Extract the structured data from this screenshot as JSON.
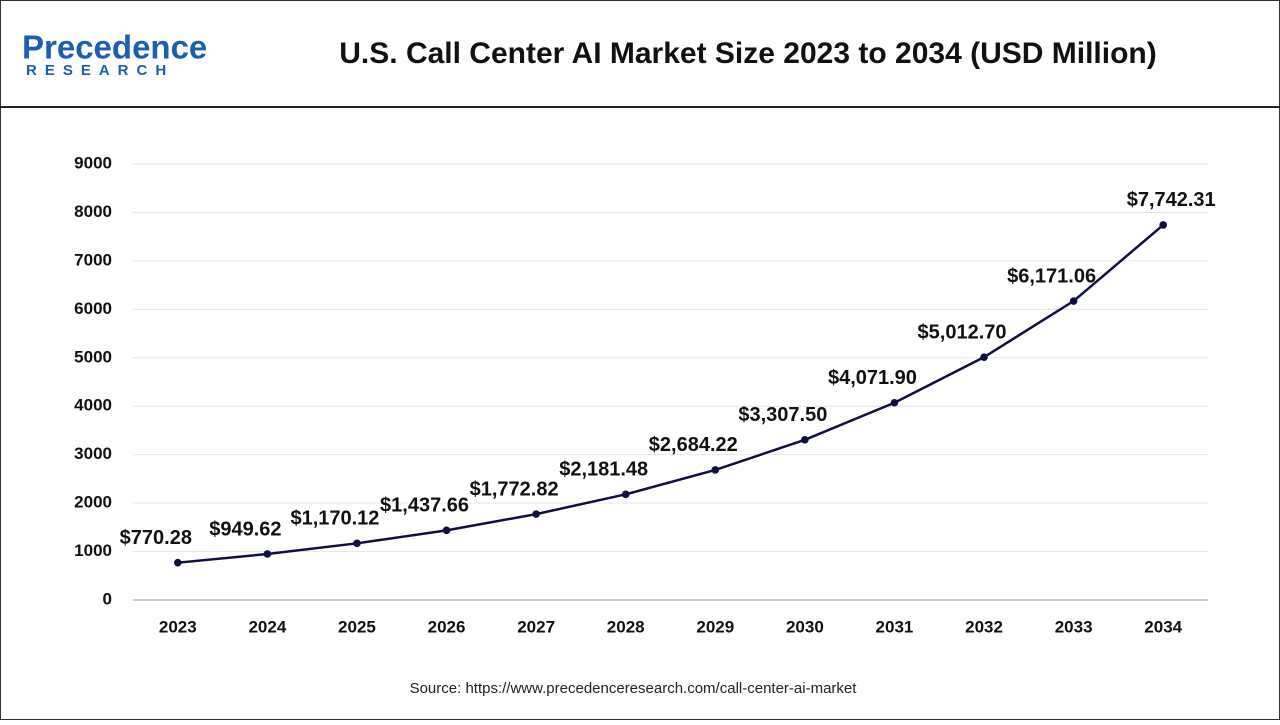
{
  "logo": {
    "name": "Precedence",
    "tagline": "RESEARCH"
  },
  "chart_data": {
    "type": "line",
    "title": "U.S. Call Center AI Market Size 2023 to 2034 (USD Million)",
    "categories": [
      "2023",
      "2024",
      "2025",
      "2026",
      "2027",
      "2028",
      "2029",
      "2030",
      "2031",
      "2032",
      "2033",
      "2034"
    ],
    "series": [
      {
        "color": "#0f0f45",
        "values": [
          770.28,
          949.62,
          1170.12,
          1437.66,
          1772.82,
          2181.48,
          2684.22,
          3307.5,
          4071.9,
          5012.7,
          6171.06,
          7742.31
        ],
        "value_labels": [
          "$770.28",
          "$949.62",
          "$1,170.12",
          "$1,437.66",
          "$1,772.82",
          "$2,181.48",
          "$2,684.22",
          "$3,307.50",
          "$4,071.90",
          "$5,012.70",
          "$6,171.06",
          "$7,742.31"
        ]
      }
    ],
    "ylim": [
      0,
      9000
    ],
    "yticks": [
      0,
      1000,
      2000,
      3000,
      4000,
      5000,
      6000,
      7000,
      8000,
      9000
    ],
    "grid": true,
    "source": "Source: https://www.precedenceresearch.com/call-center-ai-market"
  }
}
